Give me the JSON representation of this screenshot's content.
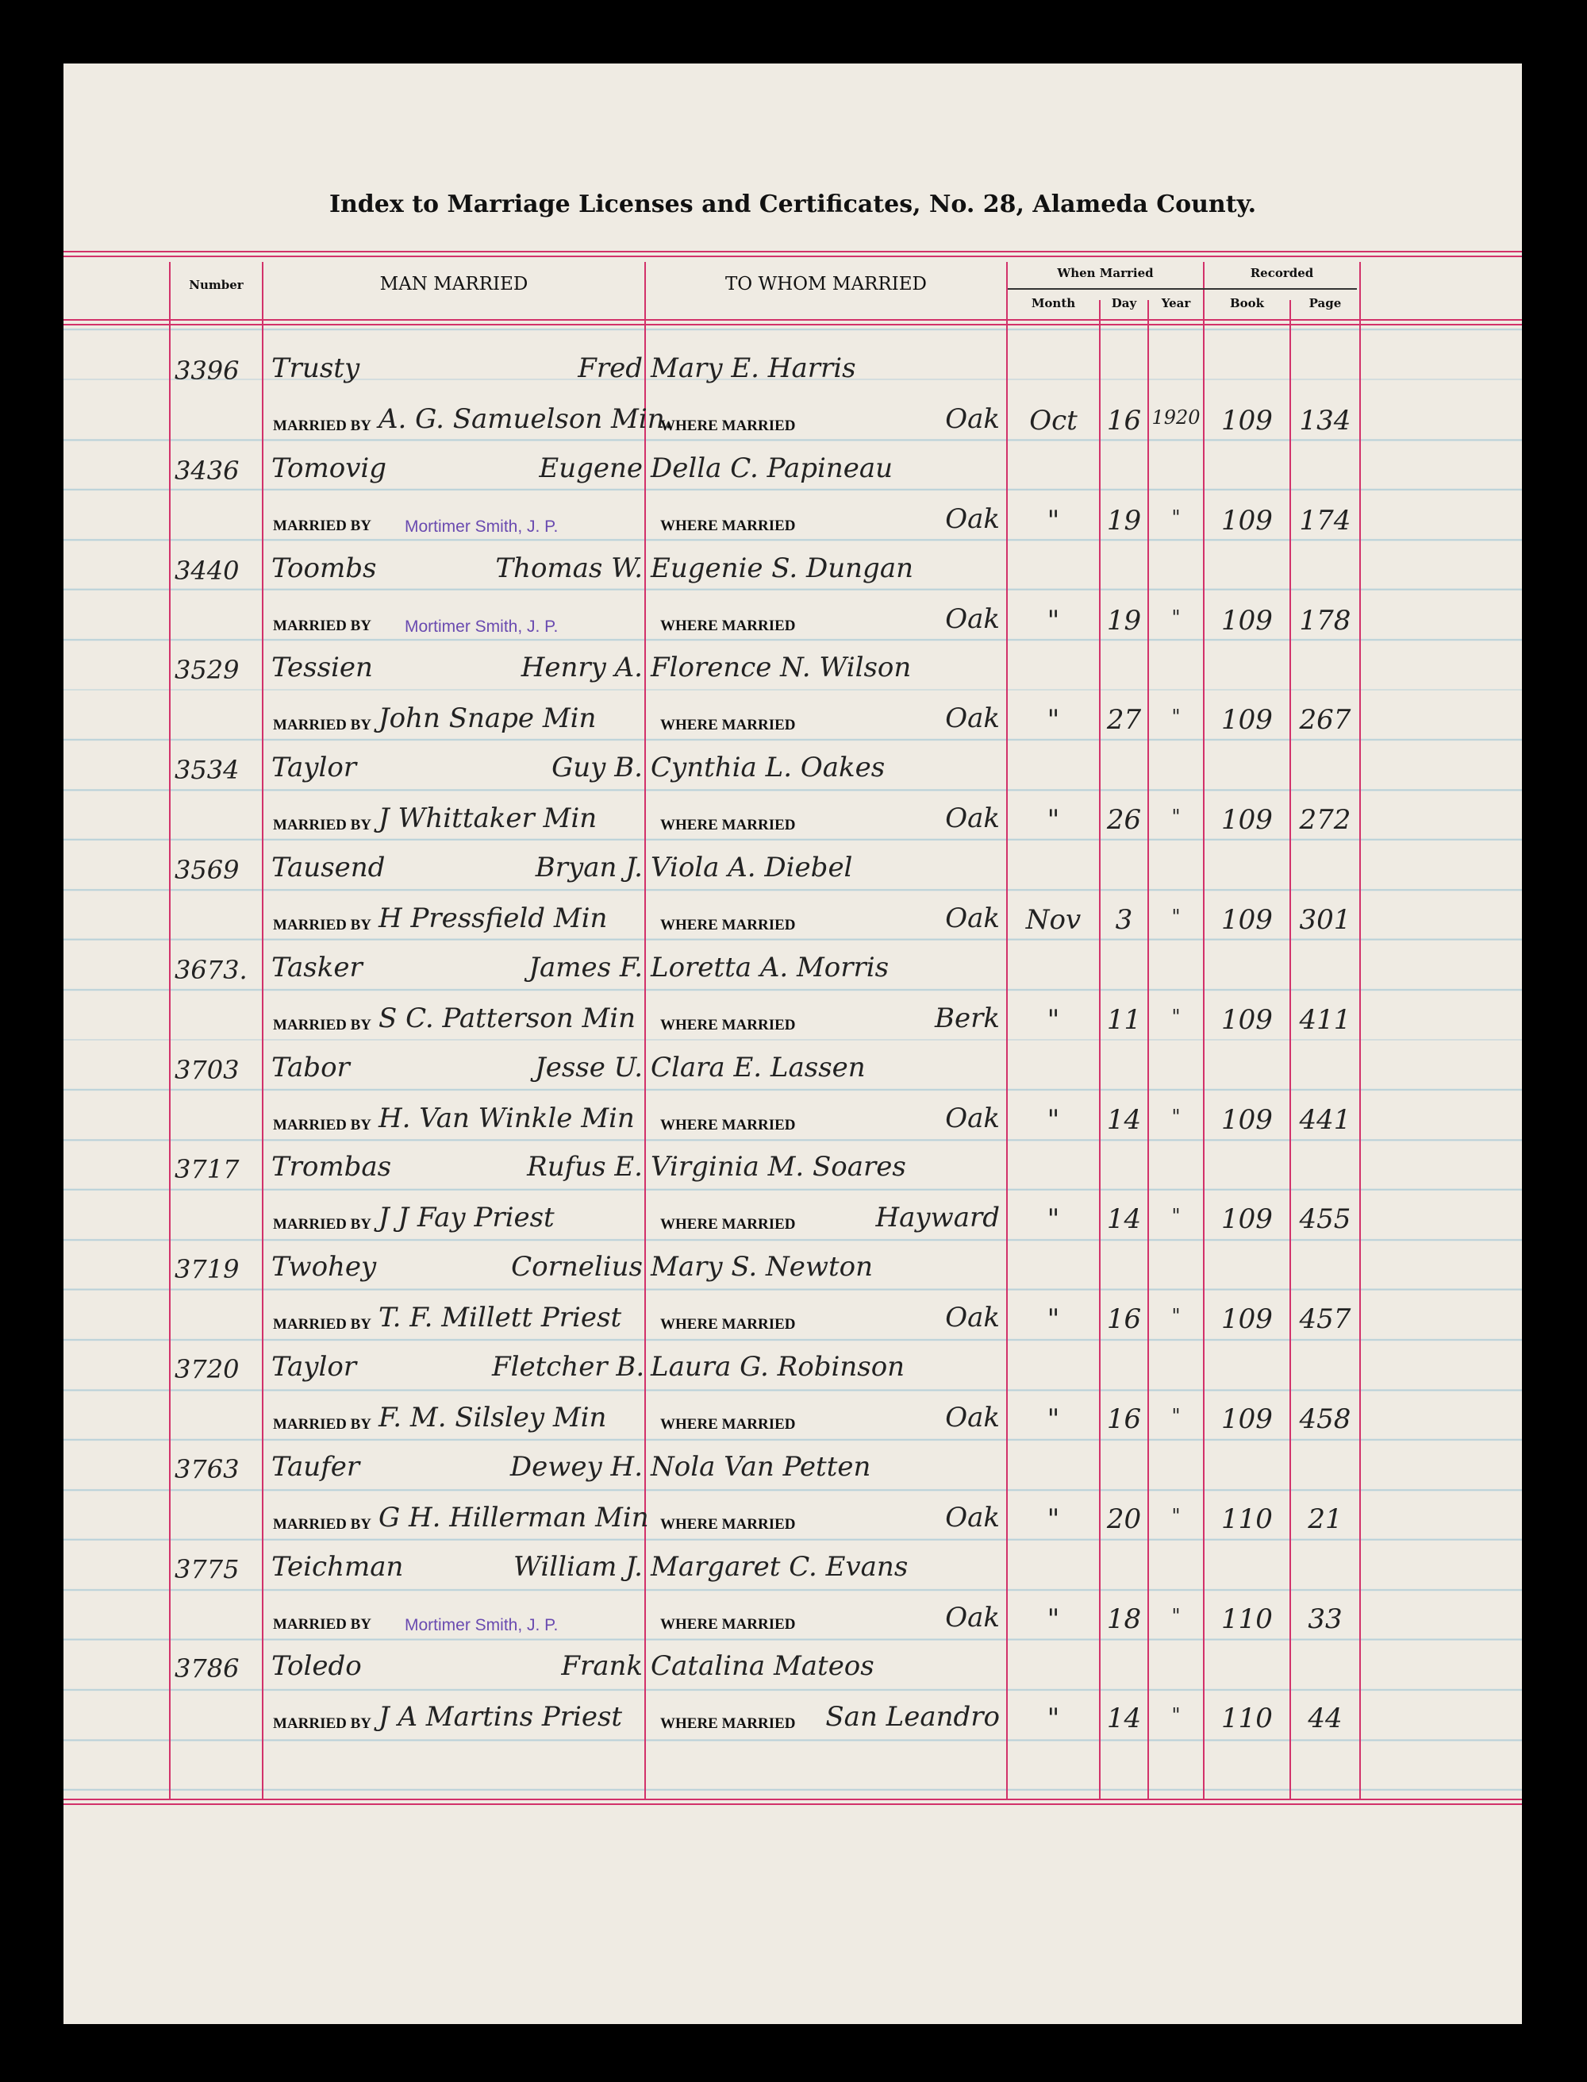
{
  "title": "Index to Marriage Licenses and Certificates, No. 28, Alameda County.",
  "headers": {
    "number": "Number",
    "man": "MAN MARRIED",
    "woman": "TO WHOM MARRIED",
    "when": "When Married",
    "month": "Month",
    "day": "Day",
    "year": "Year",
    "recorded": "Recorded",
    "book": "Book",
    "page": "Page"
  },
  "labels": {
    "married_by": "MARRIED BY",
    "where_married": "WHERE MARRIED"
  },
  "entries": [
    {
      "number": "3396",
      "surname": "Trusty",
      "given": "Fred",
      "spouse": "Mary E. Harris",
      "married_by": "A. G. Samuelson Min.",
      "stamp": false,
      "place": "Oak",
      "month": "Oct",
      "day": "16",
      "year": "1920",
      "book": "109",
      "page": "134"
    },
    {
      "number": "3436",
      "surname": "Tomovig",
      "given": "Eugene",
      "spouse": "Della C. Papineau",
      "married_by": "Mortimer Smith, J. P.",
      "stamp": true,
      "place": "Oak",
      "month": "\"",
      "day": "19",
      "year": "\"",
      "book": "109",
      "page": "174"
    },
    {
      "number": "3440",
      "surname": "Toombs",
      "given": "Thomas W.",
      "spouse": "Eugenie S. Dungan",
      "married_by": "Mortimer Smith, J. P.",
      "stamp": true,
      "place": "Oak",
      "month": "\"",
      "day": "19",
      "year": "\"",
      "book": "109",
      "page": "178"
    },
    {
      "number": "3529",
      "surname": "Tessien",
      "given": "Henry A.",
      "spouse": "Florence N. Wilson",
      "married_by": "John Snape Min",
      "stamp": false,
      "place": "Oak",
      "month": "\"",
      "day": "27",
      "year": "\"",
      "book": "109",
      "page": "267"
    },
    {
      "number": "3534",
      "surname": "Taylor",
      "given": "Guy B.",
      "spouse": "Cynthia L. Oakes",
      "married_by": "J Whittaker Min",
      "stamp": false,
      "place": "Oak",
      "month": "\"",
      "day": "26",
      "year": "\"",
      "book": "109",
      "page": "272"
    },
    {
      "number": "3569",
      "surname": "Tausend",
      "given": "Bryan J.",
      "spouse": "Viola A. Diebel",
      "married_by": "H Pressfield Min",
      "stamp": false,
      "place": "Oak",
      "month": "Nov",
      "day": "3",
      "year": "\"",
      "book": "109",
      "page": "301"
    },
    {
      "number": "3673.",
      "surname": "Tasker",
      "given": "James F.",
      "spouse": "Loretta A. Morris",
      "married_by": "S C. Patterson Min",
      "stamp": false,
      "place": "Berk",
      "month": "\"",
      "day": "11",
      "year": "\"",
      "book": "109",
      "page": "411"
    },
    {
      "number": "3703",
      "surname": "Tabor",
      "given": "Jesse U.",
      "spouse": "Clara E. Lassen",
      "married_by": "H. Van Winkle Min",
      "stamp": false,
      "place": "Oak",
      "month": "\"",
      "day": "14",
      "year": "\"",
      "book": "109",
      "page": "441"
    },
    {
      "number": "3717",
      "surname": "Trombas",
      "given": "Rufus E.",
      "spouse": "Virginia M. Soares",
      "married_by": "J J Fay Priest",
      "stamp": false,
      "place": "Hayward",
      "month": "\"",
      "day": "14",
      "year": "\"",
      "book": "109",
      "page": "455"
    },
    {
      "number": "3719",
      "surname": "Twohey",
      "given": "Cornelius",
      "spouse": "Mary S. Newton",
      "married_by": "T. F. Millett Priest",
      "stamp": false,
      "place": "Oak",
      "month": "\"",
      "day": "16",
      "year": "\"",
      "book": "109",
      "page": "457"
    },
    {
      "number": "3720",
      "surname": "Taylor",
      "given": "Fletcher B.",
      "spouse": "Laura G. Robinson",
      "married_by": "F. M. Silsley Min",
      "stamp": false,
      "place": "Oak",
      "month": "\"",
      "day": "16",
      "year": "\"",
      "book": "109",
      "page": "458"
    },
    {
      "number": "3763",
      "surname": "Taufer",
      "given": "Dewey H.",
      "spouse": "Nola Van Petten",
      "married_by": "G H. Hillerman Min",
      "stamp": false,
      "place": "Oak",
      "month": "\"",
      "day": "20",
      "year": "\"",
      "book": "110",
      "page": "21"
    },
    {
      "number": "3775",
      "surname": "Teichman",
      "given": "William J.",
      "spouse": "Margaret C. Evans",
      "married_by": "Mortimer Smith, J. P.",
      "stamp": true,
      "place": "Oak",
      "month": "\"",
      "day": "18",
      "year": "\"",
      "book": "110",
      "page": "33"
    },
    {
      "number": "3786",
      "surname": "Toledo",
      "given": "Frank",
      "spouse": "Catalina Mateos",
      "married_by": "J A Martins Priest",
      "stamp": false,
      "place": "San Leandro",
      "month": "\"",
      "day": "14",
      "year": "\"",
      "book": "110",
      "page": "44"
    }
  ]
}
